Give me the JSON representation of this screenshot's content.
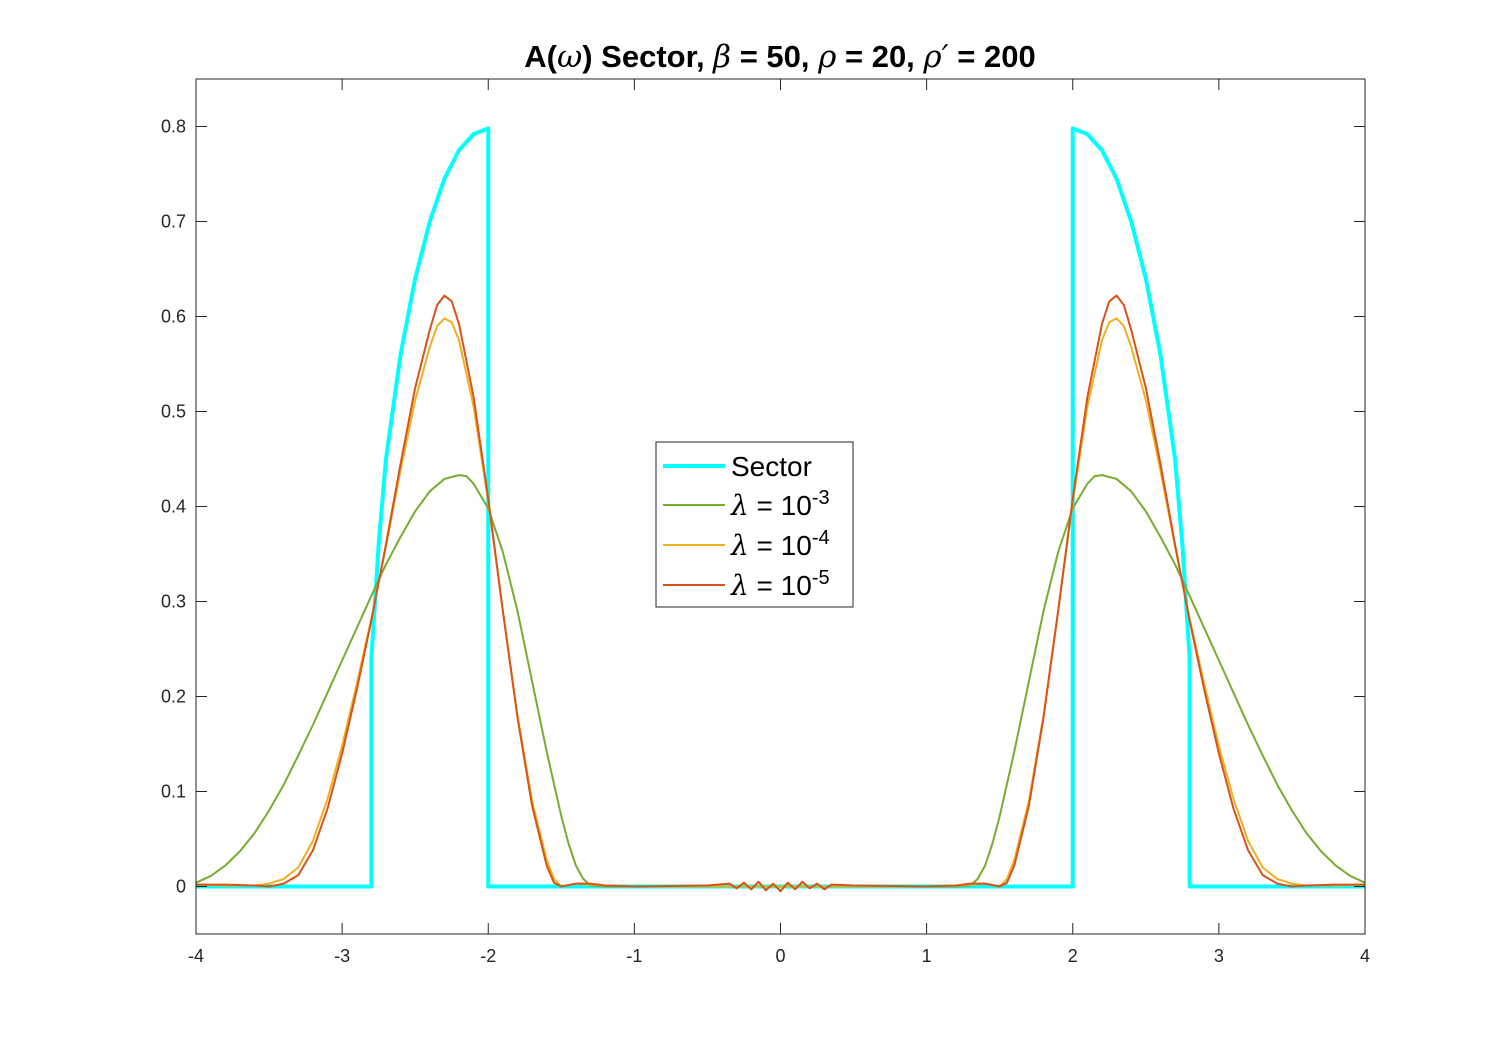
{
  "chart_data": {
    "type": "line",
    "title": {
      "prefix": "A(",
      "omega": "ω",
      "mid1": ") Sector, ",
      "beta": "β",
      "mid2": " = 50, ",
      "rho": "ρ",
      "mid3": " = 20, ",
      "rho_prime": "ρ′",
      "suffix": " = 200"
    },
    "xlabel": "",
    "ylabel": "",
    "xlim": [
      -4,
      4
    ],
    "ylim": [
      -0.05,
      0.85
    ],
    "xticks": [
      -4,
      -3,
      -2,
      -1,
      0,
      1,
      2,
      3,
      4
    ],
    "xtick_labels": [
      "-4",
      "-3",
      "-2",
      "-1",
      "0",
      "1",
      "2",
      "3",
      "4"
    ],
    "yticks": [
      0,
      0.1,
      0.2,
      0.3,
      0.4,
      0.5,
      0.6,
      0.7,
      0.8
    ],
    "ytick_labels": [
      "0",
      "0.1",
      "0.2",
      "0.3",
      "0.4",
      "0.5",
      "0.6",
      "0.7",
      "0.8"
    ],
    "grid": false,
    "legend_position": "center",
    "legend": [
      {
        "symbol": "",
        "base": "Sector",
        "exp": "",
        "color": "#00ffff"
      },
      {
        "symbol": "λ",
        "base": " = 10",
        "exp": "-3",
        "color": "#77ac30"
      },
      {
        "symbol": "λ",
        "base": " = 10",
        "exp": "-4",
        "color": "#edb120"
      },
      {
        "symbol": "λ",
        "base": " = 10",
        "exp": "-5",
        "color": "#d95319"
      }
    ],
    "series": [
      {
        "name": "Sector",
        "color": "#00ffff",
        "width": 4,
        "x": [
          -4,
          -2.8,
          -2.8,
          -2.75,
          -2.7,
          -2.6,
          -2.5,
          -2.4,
          -2.3,
          -2.2,
          -2.1,
          -2.0,
          -2.0,
          -1.5,
          -1.0,
          0,
          1.0,
          1.5,
          2.0,
          2.0,
          2.1,
          2.2,
          2.3,
          2.4,
          2.5,
          2.6,
          2.7,
          2.75,
          2.8,
          2.8,
          4
        ],
        "y": [
          0,
          0,
          0.24,
          0.36,
          0.45,
          0.56,
          0.64,
          0.7,
          0.745,
          0.775,
          0.792,
          0.798,
          0,
          0,
          0,
          0,
          0,
          0,
          0,
          0.798,
          0.792,
          0.775,
          0.745,
          0.7,
          0.64,
          0.56,
          0.45,
          0.36,
          0.24,
          0,
          0
        ]
      },
      {
        "name": "λ = 10^-3",
        "color": "#77ac30",
        "width": 2,
        "x": [
          -4,
          -3.9,
          -3.8,
          -3.7,
          -3.6,
          -3.5,
          -3.4,
          -3.3,
          -3.2,
          -3.1,
          -3.0,
          -2.9,
          -2.8,
          -2.7,
          -2.6,
          -2.5,
          -2.4,
          -2.3,
          -2.2,
          -2.15,
          -2.1,
          -2.0,
          -1.9,
          -1.8,
          -1.7,
          -1.6,
          -1.5,
          -1.45,
          -1.4,
          -1.35,
          -1.3,
          -1.2,
          -1.0,
          0,
          1.0,
          1.2,
          1.3,
          1.35,
          1.4,
          1.45,
          1.5,
          1.6,
          1.7,
          1.8,
          1.9,
          2.0,
          2.1,
          2.15,
          2.2,
          2.3,
          2.4,
          2.5,
          2.6,
          2.7,
          2.8,
          2.9,
          3.0,
          3.1,
          3.2,
          3.3,
          3.4,
          3.5,
          3.6,
          3.7,
          3.8,
          3.9,
          4
        ],
        "y": [
          0.004,
          0.011,
          0.022,
          0.037,
          0.056,
          0.08,
          0.107,
          0.138,
          0.17,
          0.204,
          0.238,
          0.272,
          0.306,
          0.339,
          0.368,
          0.395,
          0.416,
          0.429,
          0.433,
          0.432,
          0.424,
          0.398,
          0.352,
          0.29,
          0.216,
          0.142,
          0.074,
          0.045,
          0.022,
          0.008,
          0.001,
          0,
          0,
          0,
          0,
          0,
          0.001,
          0.008,
          0.022,
          0.045,
          0.074,
          0.142,
          0.216,
          0.29,
          0.352,
          0.398,
          0.424,
          0.432,
          0.433,
          0.429,
          0.416,
          0.395,
          0.368,
          0.339,
          0.306,
          0.272,
          0.238,
          0.204,
          0.17,
          0.138,
          0.107,
          0.08,
          0.056,
          0.037,
          0.022,
          0.011,
          0.004
        ]
      },
      {
        "name": "λ = 10^-4",
        "color": "#edb120",
        "width": 2,
        "x": [
          -4,
          -3.8,
          -3.6,
          -3.5,
          -3.4,
          -3.3,
          -3.2,
          -3.1,
          -3.0,
          -2.9,
          -2.8,
          -2.7,
          -2.6,
          -2.5,
          -2.4,
          -2.35,
          -2.3,
          -2.25,
          -2.2,
          -2.1,
          -2.0,
          -1.9,
          -1.8,
          -1.7,
          -1.6,
          -1.55,
          -1.5,
          -1.4,
          -1.3,
          -1.2,
          -1.0,
          0,
          1.0,
          1.2,
          1.3,
          1.4,
          1.5,
          1.55,
          1.6,
          1.7,
          1.8,
          1.9,
          2.0,
          2.1,
          2.2,
          2.25,
          2.3,
          2.35,
          2.4,
          2.5,
          2.6,
          2.7,
          2.8,
          2.9,
          3.0,
          3.1,
          3.2,
          3.3,
          3.4,
          3.5,
          3.6,
          3.8,
          4
        ],
        "y": [
          0.002,
          0.001,
          0.001,
          0.003,
          0.008,
          0.02,
          0.048,
          0.092,
          0.148,
          0.213,
          0.282,
          0.358,
          0.438,
          0.512,
          0.568,
          0.59,
          0.598,
          0.594,
          0.575,
          0.505,
          0.405,
          0.29,
          0.18,
          0.09,
          0.028,
          0.008,
          0.0,
          0.003,
          0.002,
          0.001,
          0,
          0,
          0,
          0.001,
          0.002,
          0.003,
          0.0,
          0.008,
          0.028,
          0.09,
          0.18,
          0.29,
          0.405,
          0.505,
          0.575,
          0.594,
          0.598,
          0.59,
          0.568,
          0.512,
          0.438,
          0.358,
          0.282,
          0.213,
          0.148,
          0.092,
          0.048,
          0.02,
          0.008,
          0.003,
          0.001,
          0.001,
          0.002
        ]
      },
      {
        "name": "λ = 10^-5",
        "color": "#d95319",
        "width": 2,
        "x": [
          -4,
          -3.8,
          -3.6,
          -3.5,
          -3.4,
          -3.3,
          -3.2,
          -3.1,
          -3.0,
          -2.9,
          -2.8,
          -2.7,
          -2.6,
          -2.5,
          -2.4,
          -2.35,
          -2.3,
          -2.25,
          -2.2,
          -2.1,
          -2.0,
          -1.9,
          -1.8,
          -1.7,
          -1.6,
          -1.55,
          -1.5,
          -1.4,
          -1.3,
          -1.2,
          -1.0,
          -0.5,
          -0.35,
          -0.3,
          -0.25,
          -0.2,
          -0.15,
          -0.1,
          -0.05,
          0,
          0.05,
          0.1,
          0.15,
          0.2,
          0.25,
          0.3,
          0.35,
          0.5,
          1.0,
          1.2,
          1.3,
          1.4,
          1.5,
          1.55,
          1.6,
          1.7,
          1.8,
          1.9,
          2.0,
          2.1,
          2.2,
          2.25,
          2.3,
          2.35,
          2.4,
          2.5,
          2.6,
          2.7,
          2.8,
          2.9,
          3.0,
          3.1,
          3.2,
          3.3,
          3.4,
          3.5,
          3.6,
          3.8,
          4
        ],
        "y": [
          0.002,
          0.002,
          0.001,
          0.0,
          0.003,
          0.012,
          0.038,
          0.082,
          0.14,
          0.207,
          0.28,
          0.36,
          0.445,
          0.525,
          0.586,
          0.612,
          0.622,
          0.616,
          0.592,
          0.515,
          0.408,
          0.29,
          0.178,
          0.085,
          0.022,
          0.004,
          0.0,
          0.003,
          0.003,
          0.001,
          0,
          0.001,
          0.003,
          -0.002,
          0.004,
          -0.003,
          0.005,
          -0.004,
          0.003,
          -0.005,
          0.004,
          -0.003,
          0.005,
          -0.002,
          0.003,
          -0.003,
          0.002,
          0.001,
          0,
          0.001,
          0.003,
          0.003,
          0.0,
          0.004,
          0.022,
          0.085,
          0.178,
          0.29,
          0.408,
          0.515,
          0.592,
          0.616,
          0.622,
          0.612,
          0.586,
          0.525,
          0.445,
          0.36,
          0.28,
          0.207,
          0.14,
          0.082,
          0.038,
          0.012,
          0.003,
          0.0,
          0.001,
          0.002,
          0.002
        ]
      }
    ]
  }
}
